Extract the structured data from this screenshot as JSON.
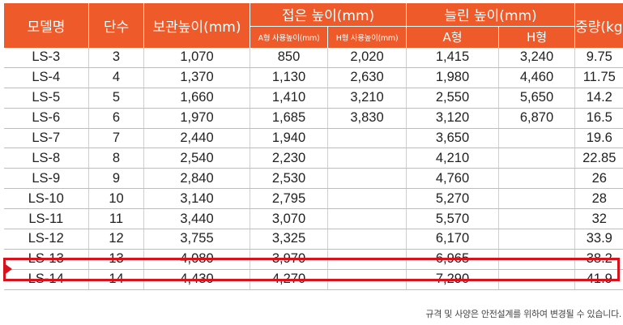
{
  "headers": {
    "model": "모델명",
    "stages": "단수",
    "storage_height": "보관높이(mm)",
    "folded_height": "접은 높이(mm)",
    "folded_a": "A형 사용높이(mm)",
    "folded_h": "H형 사용높이(mm)",
    "extended_height": "늘린 높이(mm)",
    "extended_a": "A형",
    "extended_h": "H형",
    "weight": "중량(kg)"
  },
  "rows": [
    {
      "model": "LS-3",
      "stages": "3",
      "storage": "1,070",
      "fold_a": "850",
      "fold_h": "2,020",
      "ext_a": "1,415",
      "ext_h": "3,240",
      "weight": "9.75"
    },
    {
      "model": "LS-4",
      "stages": "4",
      "storage": "1,370",
      "fold_a": "1,130",
      "fold_h": "2,630",
      "ext_a": "1,980",
      "ext_h": "4,460",
      "weight": "11.75"
    },
    {
      "model": "LS-5",
      "stages": "5",
      "storage": "1,660",
      "fold_a": "1,410",
      "fold_h": "3,210",
      "ext_a": "2,550",
      "ext_h": "5,650",
      "weight": "14.2"
    },
    {
      "model": "LS-6",
      "stages": "6",
      "storage": "1,970",
      "fold_a": "1,685",
      "fold_h": "3,830",
      "ext_a": "3,120",
      "ext_h": "6,870",
      "weight": "16.5"
    },
    {
      "model": "LS-7",
      "stages": "7",
      "storage": "2,440",
      "fold_a": "1,940",
      "fold_h": "",
      "ext_a": "3,650",
      "ext_h": "",
      "weight": "19.6"
    },
    {
      "model": "LS-8",
      "stages": "8",
      "storage": "2,540",
      "fold_a": "2,230",
      "fold_h": "",
      "ext_a": "4,210",
      "ext_h": "",
      "weight": "22.85"
    },
    {
      "model": "LS-9",
      "stages": "9",
      "storage": "2,840",
      "fold_a": "2,530",
      "fold_h": "",
      "ext_a": "4,760",
      "ext_h": "",
      "weight": "26"
    },
    {
      "model": "LS-10",
      "stages": "10",
      "storage": "3,140",
      "fold_a": "2,795",
      "fold_h": "",
      "ext_a": "5,270",
      "ext_h": "",
      "weight": "28"
    },
    {
      "model": "LS-11",
      "stages": "11",
      "storage": "3,440",
      "fold_a": "3,070",
      "fold_h": "",
      "ext_a": "5,570",
      "ext_h": "",
      "weight": "32"
    },
    {
      "model": "LS-12",
      "stages": "12",
      "storage": "3,755",
      "fold_a": "3,325",
      "fold_h": "",
      "ext_a": "6,170",
      "ext_h": "",
      "weight": "33.9"
    },
    {
      "model": "LS-13",
      "stages": "13",
      "storage": "4,080",
      "fold_a": "3,970",
      "fold_h": "",
      "ext_a": "6,965",
      "ext_h": "",
      "weight": "38.2"
    },
    {
      "model": "LS-14",
      "stages": "14",
      "storage": "4,430",
      "fold_a": "4,270",
      "fold_h": "",
      "ext_a": "7,290",
      "ext_h": "",
      "weight": "41.9"
    }
  ],
  "highlighted_model": "LS-13",
  "footnote": "규격 및 사양은 안전설계를 위하여 변경될 수 있습니다.",
  "colors": {
    "header_bg": "#ee5a2a",
    "highlight": "#d7121d"
  }
}
